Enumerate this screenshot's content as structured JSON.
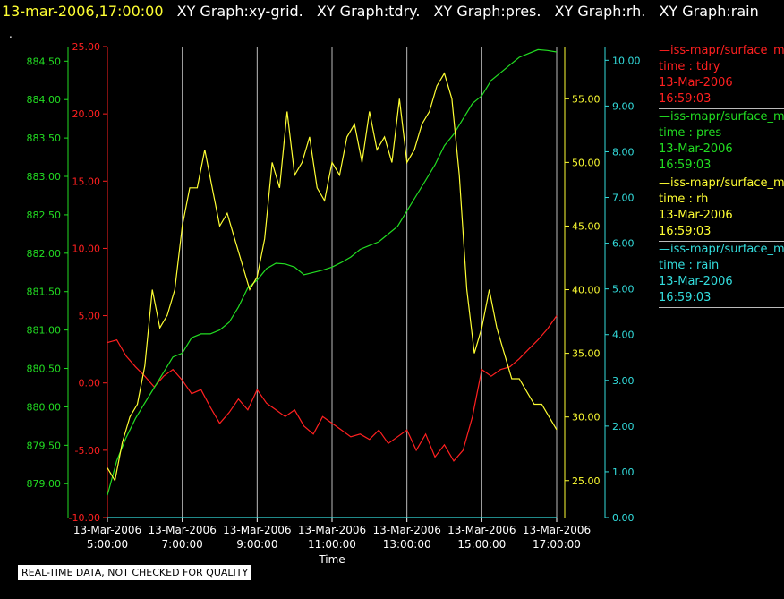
{
  "header": {
    "timestamp": "13-mar-2006,17:00:00",
    "graph_titles": [
      "XY Graph:xy-grid.",
      "XY Graph:tdry.",
      "XY Graph:pres.",
      "XY Graph:rh.",
      "XY Graph:rain"
    ]
  },
  "dot": ".",
  "notice": "REAL-TIME DATA, NOT CHECKED FOR QUALITY",
  "colors": {
    "tdry": "#ff2020",
    "pres": "#22dd22",
    "rh": "#ffff33",
    "rain": "#33dddd",
    "grid": "#bbbbbb",
    "text": "#ffffff"
  },
  "legend": [
    {
      "key": "tdry",
      "name": "—iss-mapr/surface_m",
      "line1": "time : tdry",
      "line2": "13-Mar-2006",
      "line3": "16:59:03"
    },
    {
      "key": "pres",
      "name": "—iss-mapr/surface_m",
      "line1": "time : pres",
      "line2": "13-Mar-2006",
      "line3": "16:59:03"
    },
    {
      "key": "rh",
      "name": "—iss-mapr/surface_m",
      "line1": "time : rh",
      "line2": "13-Mar-2006",
      "line3": "16:59:03"
    },
    {
      "key": "rain",
      "name": "—iss-mapr/surface_m",
      "line1": "time : rain",
      "line2": "13-Mar-2006",
      "line3": "16:59:03"
    }
  ],
  "chart_data": {
    "type": "line",
    "xlabel": "Time",
    "x_ticks": [
      {
        "date": "13-Mar-2006",
        "time": "5:00:00",
        "h": 5
      },
      {
        "date": "13-Mar-2006",
        "time": "7:00:00",
        "h": 7
      },
      {
        "date": "13-Mar-2006",
        "time": "9:00:00",
        "h": 9
      },
      {
        "date": "13-Mar-2006",
        "time": "11:00:00",
        "h": 11
      },
      {
        "date": "13-Mar-2006",
        "time": "13:00:00",
        "h": 13
      },
      {
        "date": "13-Mar-2006",
        "time": "15:00:00",
        "h": 15
      },
      {
        "date": "13-Mar-2006",
        "time": "17:00:00",
        "h": 17
      }
    ],
    "xlim": [
      5,
      17
    ],
    "axes": {
      "tdry": {
        "range": [
          -10,
          25
        ],
        "ticks": [
          "-10.00",
          "-5.00",
          "0.00",
          "5.00",
          "10.00",
          "15.00",
          "20.00",
          "25.00"
        ]
      },
      "pres": {
        "range": [
          878.56,
          884.69
        ],
        "ticks": [
          "879.00",
          "879.50",
          "880.00",
          "880.50",
          "881.00",
          "881.50",
          "882.00",
          "882.50",
          "883.00",
          "883.50",
          "884.00",
          "884.50"
        ]
      },
      "rh": {
        "range": [
          22.1,
          59.1
        ],
        "ticks": [
          "25.00",
          "30.00",
          "35.00",
          "40.00",
          "45.00",
          "50.00",
          "55.00"
        ]
      },
      "rain": {
        "range": [
          0,
          10.3
        ],
        "ticks": [
          "0.00",
          "1.00",
          "2.00",
          "3.00",
          "4.00",
          "5.00",
          "6.00",
          "7.00",
          "8.00",
          "9.00",
          "10.00"
        ]
      }
    },
    "series": [
      {
        "key": "tdry",
        "x": [
          5.0,
          5.25,
          5.5,
          5.75,
          6.0,
          6.25,
          6.5,
          6.75,
          7.0,
          7.25,
          7.5,
          7.75,
          8.0,
          8.25,
          8.5,
          8.75,
          9.0,
          9.25,
          9.5,
          9.75,
          10.0,
          10.25,
          10.5,
          10.75,
          11.0,
          11.25,
          11.5,
          11.75,
          12.0,
          12.25,
          12.5,
          12.75,
          13.0,
          13.25,
          13.5,
          13.75,
          14.0,
          14.25,
          14.5,
          14.75,
          15.0,
          15.25,
          15.5,
          15.75,
          16.0,
          16.25,
          16.5,
          16.75,
          17.0
        ],
        "y": [
          3.0,
          3.2,
          2.0,
          1.2,
          0.5,
          -0.3,
          0.5,
          1.0,
          0.2,
          -0.8,
          -0.5,
          -1.8,
          -3.0,
          -2.2,
          -1.2,
          -2.0,
          -0.5,
          -1.5,
          -2.0,
          -2.5,
          -2.0,
          -3.2,
          -3.8,
          -2.5,
          -3.0,
          -3.5,
          -4.0,
          -3.8,
          -4.2,
          -3.5,
          -4.5,
          -4.0,
          -3.5,
          -5.0,
          -3.8,
          -5.5,
          -4.6,
          -5.8,
          -5.0,
          -2.5,
          1.0,
          0.5,
          1.0,
          1.2,
          1.8,
          2.5,
          3.2,
          4.0,
          5.0
        ]
      },
      {
        "key": "pres",
        "x": [
          5.0,
          5.25,
          5.5,
          5.75,
          6.0,
          6.25,
          6.5,
          6.75,
          7.0,
          7.25,
          7.5,
          7.75,
          8.0,
          8.25,
          8.5,
          8.75,
          9.0,
          9.25,
          9.5,
          9.75,
          10.0,
          10.25,
          10.5,
          10.75,
          11.0,
          11.25,
          11.5,
          11.75,
          12.0,
          12.25,
          12.5,
          12.75,
          13.0,
          13.25,
          13.5,
          13.75,
          14.0,
          14.25,
          14.5,
          14.75,
          15.0,
          15.25,
          15.5,
          15.75,
          16.0,
          16.25,
          16.5,
          16.75,
          17.0
        ],
        "y": [
          878.85,
          879.3,
          879.6,
          879.85,
          880.05,
          880.25,
          880.45,
          880.65,
          880.7,
          880.9,
          880.95,
          880.95,
          881.0,
          881.1,
          881.3,
          881.55,
          881.65,
          881.8,
          881.87,
          881.86,
          881.82,
          881.72,
          881.75,
          881.78,
          881.82,
          881.88,
          881.95,
          882.05,
          882.1,
          882.15,
          882.25,
          882.35,
          882.55,
          882.75,
          882.95,
          883.15,
          883.4,
          883.55,
          883.75,
          883.95,
          884.05,
          884.25,
          884.35,
          884.45,
          884.55,
          884.6,
          884.65,
          884.64,
          884.62
        ]
      },
      {
        "key": "rh",
        "x": [
          5.0,
          5.2,
          5.4,
          5.6,
          5.8,
          6.0,
          6.2,
          6.4,
          6.6,
          6.8,
          7.0,
          7.2,
          7.4,
          7.6,
          7.8,
          8.0,
          8.2,
          8.4,
          8.6,
          8.8,
          9.0,
          9.2,
          9.4,
          9.6,
          9.8,
          10.0,
          10.2,
          10.4,
          10.6,
          10.8,
          11.0,
          11.2,
          11.4,
          11.6,
          11.8,
          12.0,
          12.2,
          12.4,
          12.6,
          12.8,
          13.0,
          13.2,
          13.4,
          13.6,
          13.8,
          14.0,
          14.2,
          14.4,
          14.6,
          14.8,
          15.0,
          15.2,
          15.4,
          15.6,
          15.8,
          16.0,
          16.2,
          16.4,
          16.6,
          16.8,
          17.0
        ],
        "y": [
          26,
          25,
          28,
          30,
          31,
          34,
          40,
          37,
          38,
          40,
          45,
          48,
          48,
          51,
          48,
          45,
          46,
          44,
          42,
          40,
          41,
          44,
          50,
          48,
          54,
          49,
          50,
          52,
          48,
          47,
          50,
          49,
          52,
          53,
          50,
          54,
          51,
          52,
          50,
          55,
          50,
          51,
          53,
          54,
          56,
          57,
          55,
          49,
          40,
          35,
          37,
          40,
          37,
          35,
          33,
          33,
          32,
          31,
          31,
          30,
          29
        ]
      },
      {
        "key": "rain",
        "x": [
          5.0,
          17.0
        ],
        "y": [
          0.0,
          0.0
        ]
      }
    ]
  }
}
